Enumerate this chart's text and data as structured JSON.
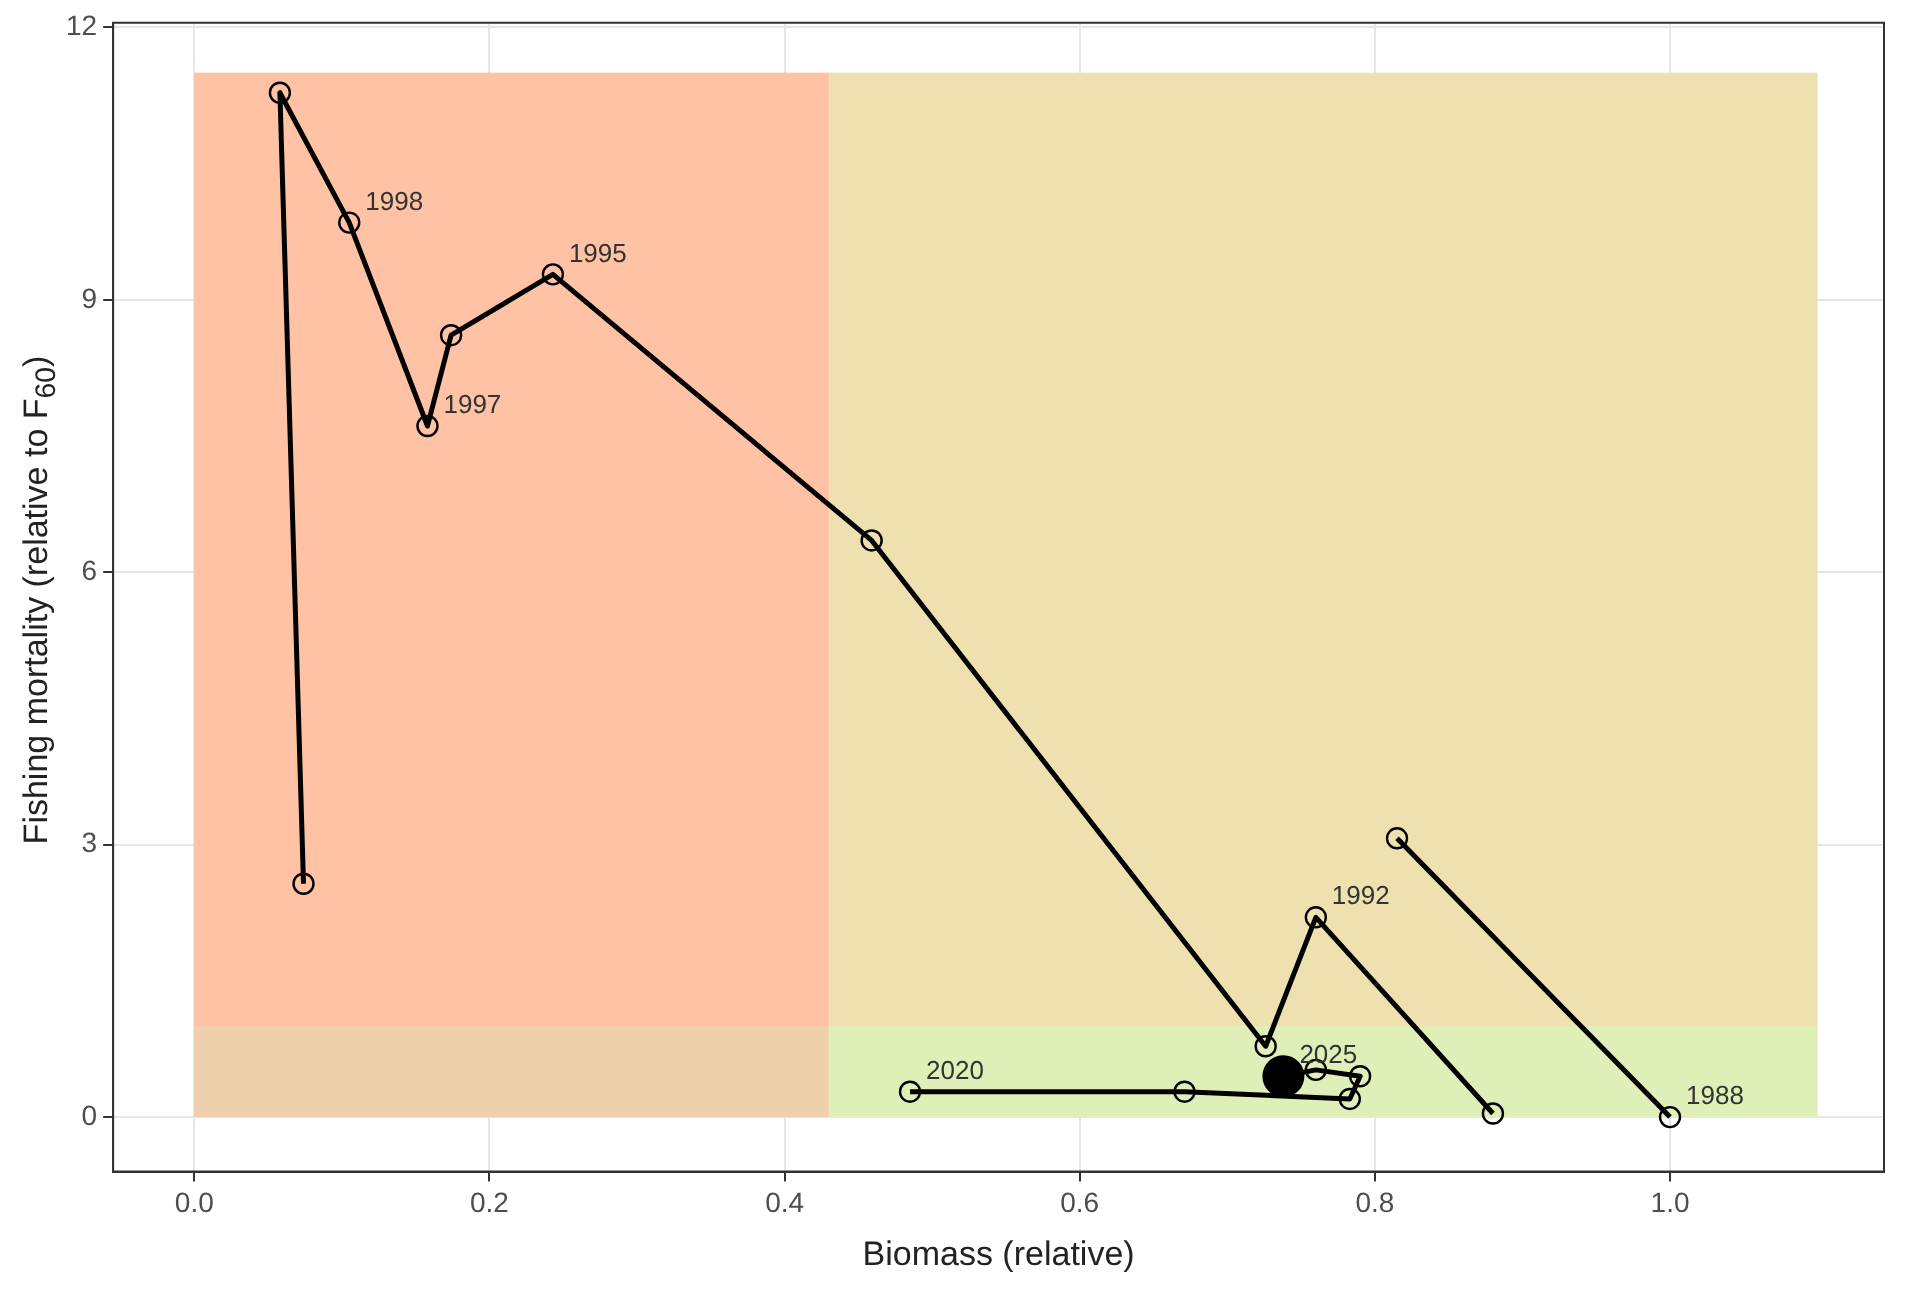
{
  "chart_data": {
    "type": "line",
    "xlabel": "Biomass (relative)",
    "ylabel": "Fishing mortality (relative to F$_{60}$)",
    "x": [
      1.0,
      0.815,
      null,
      0.88,
      0.76,
      0.726,
      0.459,
      0.243,
      0.174,
      0.158,
      0.105,
      0.058,
      0.074,
      null,
      0.485,
      0.671,
      0.783,
      0.79,
      0.76,
      0.738
    ],
    "series": [
      {
        "color": "#000000",
        "marker": "circle",
        "values": [
          0,
          3.07,
          null,
          0.04,
          2.2,
          0.78,
          6.35,
          9.28,
          8.61,
          7.61,
          9.85,
          11.28,
          2.57,
          null,
          0.28,
          0.28,
          0.2,
          0.45,
          0.52,
          0.45
        ]
      },
      {
        "type": "scatter",
        "color": "#000000",
        "x": [
          0.738
        ],
        "values": [
          0.45
        ]
      }
    ],
    "xlim": [
      -0.055,
      1.145
    ],
    "ylim": [
      -0.6,
      12.05
    ],
    "xticks": [
      {
        "value": 0,
        "label": "0.0"
      },
      {
        "value": 0.2,
        "label": "0.2"
      },
      {
        "value": 0.4,
        "label": "0.4"
      },
      {
        "value": 0.6,
        "label": "0.6"
      },
      {
        "value": 0.8,
        "label": "0.8"
      },
      {
        "value": 1,
        "label": "1.0"
      }
    ],
    "yticks": [
      0,
      3,
      6,
      9,
      12
    ],
    "bands": [
      {
        "axis": "x",
        "from": 0,
        "to": 0.43,
        "color": "#ffc2a4"
      },
      {
        "axis": "x",
        "from": 0.43,
        "to": 1.1,
        "color": "#dffeba"
      },
      {
        "axis": "y",
        "from": 1,
        "to": 11.5,
        "color": "#ffc2a4"
      },
      {
        "axis": "y",
        "from": 0,
        "to": 1,
        "color": "#dde0b4"
      }
    ],
    "annotations": [
      {
        "text": "1988",
        "x": 1.0,
        "y": 0
      },
      {
        "text": "1992",
        "x": 0.76,
        "y": 2.2
      },
      {
        "text": "1995",
        "x": 0.243,
        "y": 9.28
      },
      {
        "text": "1997",
        "x": 0.158,
        "y": 7.61
      },
      {
        "text": "1998",
        "x": 0.105,
        "y": 9.85
      },
      {
        "text": "2020",
        "x": 0.485,
        "y": 0.28
      },
      {
        "text": "2025",
        "x": 0.738,
        "y": 0.45
      }
    ],
    "grid": true,
    "legend": false
  }
}
